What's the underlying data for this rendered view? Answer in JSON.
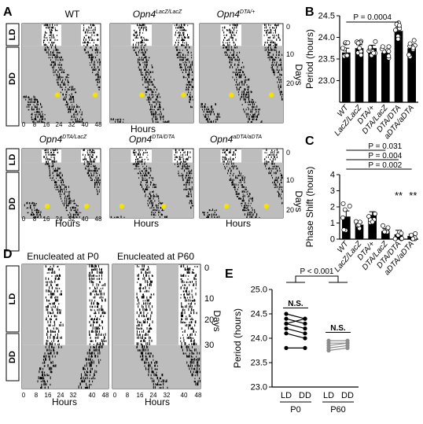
{
  "panel_a": {
    "letter": "A",
    "genotypes_top": [
      {
        "base": "WT",
        "sup": ""
      },
      {
        "base": "Opn4",
        "sup": "LacZ/LacZ"
      },
      {
        "base": "Opn4",
        "sup": "DTA/+"
      }
    ],
    "genotypes_bottom": [
      {
        "base": "Opn4",
        "sup": "DTA/LacZ"
      },
      {
        "base": "Opn4",
        "sup": "DTA/DTA"
      },
      {
        "base": "Opn4",
        "sup": "aDTA/aDTA"
      }
    ],
    "condition_labels": [
      "LD",
      "DD"
    ],
    "hour_ticks": [
      "0",
      "8",
      "16",
      "24",
      "32",
      "40",
      "48"
    ],
    "day_ticks": [
      "0",
      "10",
      "20"
    ],
    "xlabel": "Hours",
    "ylabel": "Days"
  },
  "panel_d": {
    "letter": "D",
    "titles": [
      "Enucleated at P0",
      "Enucleated at P60"
    ],
    "condition_labels": [
      "LD",
      "DD"
    ],
    "hour_ticks": [
      "0",
      "8",
      "16",
      "24",
      "32",
      "40",
      "48"
    ],
    "day_ticks": [
      "0",
      "10",
      "20",
      "30"
    ],
    "xlabel": "Hours",
    "ylabel": "Days"
  },
  "chart_data": [
    {
      "panel": "B",
      "type": "bar",
      "ylabel": "Period (hours)",
      "ylim": [
        22.5,
        24.5
      ],
      "yticks": [
        "23.0",
        "23.5",
        "24.0",
        "24.5"
      ],
      "categories": [
        "WT",
        "LacZ/LacZ",
        "DTA/+",
        "DTA/LacZ",
        "DTA/DTA",
        "aDTA/aDTA"
      ],
      "values": [
        23.65,
        23.75,
        23.75,
        23.65,
        24.15,
        23.75
      ],
      "errors": [
        0.1,
        0.08,
        0.07,
        0.06,
        0.08,
        0.09
      ],
      "annotations": [
        "P = 0.0004"
      ],
      "colors": {
        "bar": "#000000",
        "point": "#ffffff"
      }
    },
    {
      "panel": "C",
      "type": "bar",
      "ylabel": "Phase Shift (hours)",
      "ylim": [
        0,
        4
      ],
      "yticks": [
        "0",
        "1",
        "2",
        "3",
        "4"
      ],
      "categories": [
        "WT",
        "LacZ/LacZ",
        "DTA/+",
        "DTA/LacZ",
        "DTA/DTA",
        "aDTA/aDTA"
      ],
      "values": [
        1.4,
        0.9,
        1.5,
        0.5,
        0.3,
        0.2
      ],
      "errors": [
        0.35,
        0.12,
        0.2,
        0.15,
        0.25,
        0.1
      ],
      "annotations": [
        "P = 0.031",
        "P = 0.004",
        "P = 0.002",
        "**",
        "**"
      ],
      "colors": {
        "bar": "#000000",
        "point": "#ffffff"
      }
    },
    {
      "panel": "E",
      "type": "line",
      "ylabel": "Period (hours)",
      "ylim": [
        23.0,
        25.0
      ],
      "yticks": [
        "23.0",
        "23.5",
        "24.0",
        "24.5",
        "25.0"
      ],
      "x": [
        "LD",
        "DD",
        "LD",
        "DD"
      ],
      "groups": [
        "P0",
        "P60"
      ],
      "series": [
        {
          "group": "P0",
          "ld": [
            24.5,
            24.4,
            24.3,
            24.3,
            24.2,
            24.1,
            23.8
          ],
          "dd": [
            24.4,
            24.3,
            24.4,
            24.2,
            24.1,
            24.0,
            23.8
          ]
        },
        {
          "group": "P60",
          "ld": [
            23.95,
            23.9,
            23.85,
            23.8,
            23.75
          ],
          "dd": [
            23.95,
            23.9,
            23.9,
            23.85,
            23.8
          ]
        }
      ],
      "annotations": [
        "P < 0.001",
        "N.S.",
        "N.S."
      ],
      "colors": {
        "p0": "#000000",
        "p60": "#8c8c8c"
      }
    }
  ]
}
